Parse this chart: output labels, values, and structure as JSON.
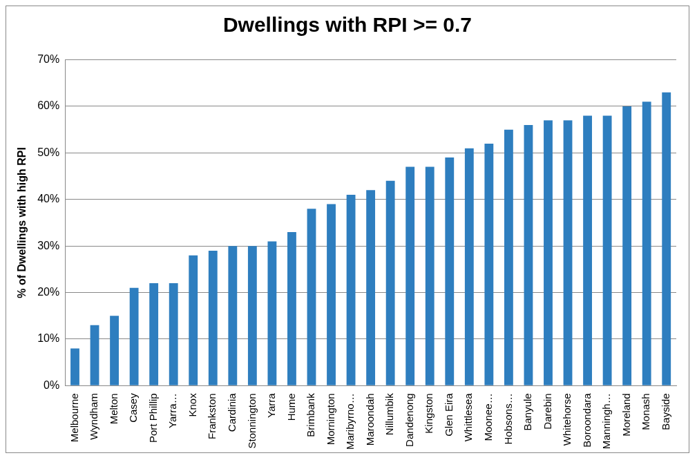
{
  "chart_data": {
    "type": "bar",
    "title": "Dwellings with RPI >= 0.7",
    "ylabel": "% of Dwellings with high RPI",
    "categories": [
      "Melbourne",
      "Wyndham",
      "Melton",
      "Casey",
      "Port Phillip",
      "Yarra…",
      "Knox",
      "Frankston",
      "Cardinia",
      "Stonnington",
      "Yarra",
      "Hume",
      "Brimbank",
      "Mornington",
      "Maribyrno…",
      "Maroondah",
      "Nillumbik",
      "Dandenong",
      "Kingston",
      "Glen Eira",
      "Whittlesea",
      "Moonee…",
      "Hobsons…",
      "Banyule",
      "Darebin",
      "Whitehorse",
      "Boroondara",
      "Manningh…",
      "Moreland",
      "Monash",
      "Bayside"
    ],
    "values": [
      8,
      13,
      15,
      21,
      22,
      22,
      28,
      29,
      30,
      30,
      31,
      33,
      38,
      39,
      41,
      42,
      44,
      47,
      47,
      49,
      51,
      52,
      55,
      56,
      57,
      57,
      58,
      58,
      60,
      61,
      63
    ],
    "color": "#2e7ebf",
    "ylim": [
      0,
      70
    ],
    "yticks": [
      {
        "value": 0,
        "label": "0%"
      },
      {
        "value": 10,
        "label": "10%"
      },
      {
        "value": 20,
        "label": "20%"
      },
      {
        "value": 30,
        "label": "30%"
      },
      {
        "value": 40,
        "label": "40%"
      },
      {
        "value": 50,
        "label": "50%"
      },
      {
        "value": 60,
        "label": "60%"
      },
      {
        "value": 70,
        "label": "70%"
      }
    ],
    "grid": "y",
    "legend": false
  }
}
